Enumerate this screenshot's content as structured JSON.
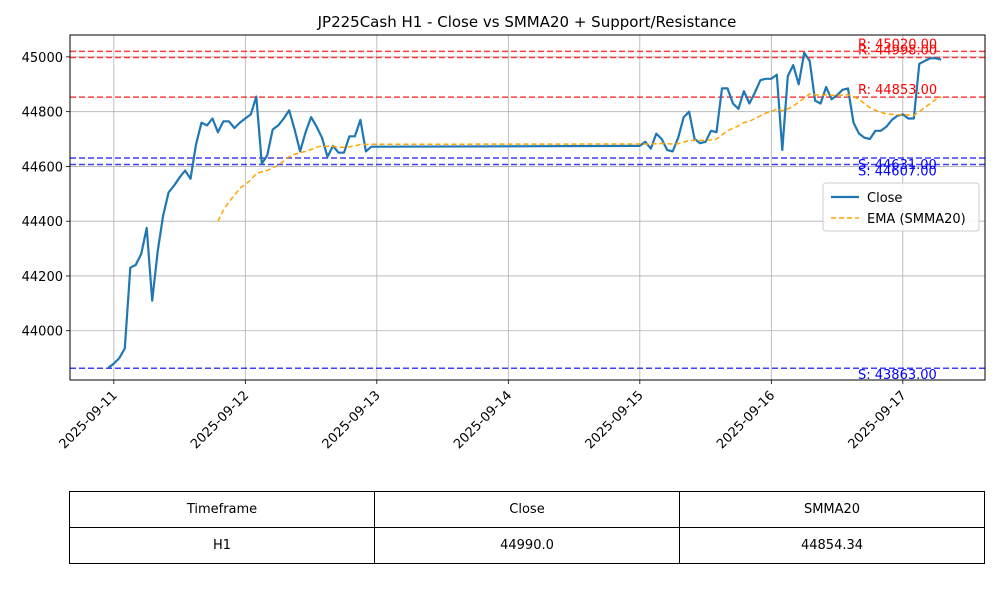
{
  "chart_data": {
    "type": "line",
    "title": "JP225Cash H1 - Close vs SMMA20 + Support/Resistance",
    "xlabel": "",
    "ylabel": "",
    "x_range": [
      "2025-09-10T16:00",
      "2025-09-17T15:00"
    ],
    "ylim": [
      43820,
      45080
    ],
    "x_ticks": [
      "2025-09-11",
      "2025-09-12",
      "2025-09-13",
      "2025-09-14",
      "2025-09-15",
      "2025-09-16",
      "2025-09-17"
    ],
    "y_ticks": [
      44000,
      44200,
      44400,
      44600,
      44800,
      45000
    ],
    "grid": true,
    "legend_position": "center-right",
    "series": [
      {
        "name": "Close",
        "color": "#1f77b4",
        "style": "solid",
        "points": [
          [
            "2025-09-10T23:00",
            43865
          ],
          [
            "2025-09-11T00:00",
            43880
          ],
          [
            "2025-09-11T01:00",
            43900
          ],
          [
            "2025-09-11T02:00",
            43935
          ],
          [
            "2025-09-11T03:00",
            44230
          ],
          [
            "2025-09-11T04:00",
            44240
          ],
          [
            "2025-09-11T05:00",
            44280
          ],
          [
            "2025-09-11T06:00",
            44375
          ],
          [
            "2025-09-11T07:00",
            44110
          ],
          [
            "2025-09-11T08:00",
            44290
          ],
          [
            "2025-09-11T09:00",
            44420
          ],
          [
            "2025-09-11T10:00",
            44505
          ],
          [
            "2025-09-11T11:00",
            44530
          ],
          [
            "2025-09-11T12:00",
            44560
          ],
          [
            "2025-09-11T13:00",
            44585
          ],
          [
            "2025-09-11T14:00",
            44555
          ],
          [
            "2025-09-11T15:00",
            44680
          ],
          [
            "2025-09-11T16:00",
            44760
          ],
          [
            "2025-09-11T17:00",
            44750
          ],
          [
            "2025-09-11T18:00",
            44775
          ],
          [
            "2025-09-11T19:00",
            44725
          ],
          [
            "2025-09-11T20:00",
            44765
          ],
          [
            "2025-09-11T21:00",
            44765
          ],
          [
            "2025-09-11T22:00",
            44740
          ],
          [
            "2025-09-11T23:00",
            44760
          ],
          [
            "2025-09-12T00:00",
            44775
          ],
          [
            "2025-09-12T01:00",
            44790
          ],
          [
            "2025-09-12T02:00",
            44855
          ],
          [
            "2025-09-12T03:00",
            44610
          ],
          [
            "2025-09-12T04:00",
            44640
          ],
          [
            "2025-09-12T05:00",
            44735
          ],
          [
            "2025-09-12T06:00",
            44750
          ],
          [
            "2025-09-12T07:00",
            44775
          ],
          [
            "2025-09-12T08:00",
            44805
          ],
          [
            "2025-09-12T09:00",
            44735
          ],
          [
            "2025-09-12T10:00",
            44655
          ],
          [
            "2025-09-12T11:00",
            44725
          ],
          [
            "2025-09-12T12:00",
            44780
          ],
          [
            "2025-09-12T13:00",
            44745
          ],
          [
            "2025-09-12T14:00",
            44705
          ],
          [
            "2025-09-12T15:00",
            44635
          ],
          [
            "2025-09-12T16:00",
            44675
          ],
          [
            "2025-09-12T17:00",
            44650
          ],
          [
            "2025-09-12T18:00",
            44650
          ],
          [
            "2025-09-12T19:00",
            44710
          ],
          [
            "2025-09-12T20:00",
            44710
          ],
          [
            "2025-09-12T21:00",
            44770
          ],
          [
            "2025-09-12T22:00",
            44655
          ],
          [
            "2025-09-12T23:00",
            44672
          ],
          [
            "2025-09-15T00:00",
            44675
          ],
          [
            "2025-09-15T01:00",
            44690
          ],
          [
            "2025-09-15T02:00",
            44665
          ],
          [
            "2025-09-15T03:00",
            44720
          ],
          [
            "2025-09-15T04:00",
            44700
          ],
          [
            "2025-09-15T05:00",
            44660
          ],
          [
            "2025-09-15T06:00",
            44655
          ],
          [
            "2025-09-15T07:00",
            44705
          ],
          [
            "2025-09-15T08:00",
            44780
          ],
          [
            "2025-09-15T09:00",
            44800
          ],
          [
            "2025-09-15T10:00",
            44700
          ],
          [
            "2025-09-15T11:00",
            44685
          ],
          [
            "2025-09-15T12:00",
            44690
          ],
          [
            "2025-09-15T13:00",
            44730
          ],
          [
            "2025-09-15T14:00",
            44725
          ],
          [
            "2025-09-15T15:00",
            44885
          ],
          [
            "2025-09-15T16:00",
            44885
          ],
          [
            "2025-09-15T17:00",
            44830
          ],
          [
            "2025-09-15T18:00",
            44810
          ],
          [
            "2025-09-15T19:00",
            44875
          ],
          [
            "2025-09-15T20:00",
            44830
          ],
          [
            "2025-09-15T21:00",
            44870
          ],
          [
            "2025-09-15T22:00",
            44915
          ],
          [
            "2025-09-15T23:00",
            44920
          ],
          [
            "2025-09-16T00:00",
            44920
          ],
          [
            "2025-09-16T01:00",
            44935
          ],
          [
            "2025-09-16T02:00",
            44660
          ],
          [
            "2025-09-16T03:00",
            44930
          ],
          [
            "2025-09-16T04:00",
            44970
          ],
          [
            "2025-09-16T05:00",
            44900
          ],
          [
            "2025-09-16T06:00",
            45015
          ],
          [
            "2025-09-16T07:00",
            44985
          ],
          [
            "2025-09-16T08:00",
            44840
          ],
          [
            "2025-09-16T09:00",
            44830
          ],
          [
            "2025-09-16T10:00",
            44890
          ],
          [
            "2025-09-16T11:00",
            44845
          ],
          [
            "2025-09-16T12:00",
            44860
          ],
          [
            "2025-09-16T13:00",
            44880
          ],
          [
            "2025-09-16T14:00",
            44885
          ],
          [
            "2025-09-16T15:00",
            44760
          ],
          [
            "2025-09-16T16:00",
            44720
          ],
          [
            "2025-09-16T17:00",
            44705
          ],
          [
            "2025-09-16T18:00",
            44700
          ],
          [
            "2025-09-16T19:00",
            44730
          ],
          [
            "2025-09-16T20:00",
            44730
          ],
          [
            "2025-09-16T21:00",
            44745
          ],
          [
            "2025-09-16T22:00",
            44770
          ],
          [
            "2025-09-16T23:00",
            44785
          ],
          [
            "2025-09-17T00:00",
            44790
          ],
          [
            "2025-09-17T01:00",
            44775
          ],
          [
            "2025-09-17T02:00",
            44775
          ],
          [
            "2025-09-17T03:00",
            44975
          ],
          [
            "2025-09-17T04:00",
            44985
          ],
          [
            "2025-09-17T05:00",
            44995
          ],
          [
            "2025-09-17T06:00",
            44995
          ],
          [
            "2025-09-17T07:00",
            44990
          ]
        ]
      },
      {
        "name": "EMA (SMMA20)",
        "color": "#ffa500",
        "style": "dashed",
        "points": [
          [
            "2025-09-11T19:00",
            44400
          ],
          [
            "2025-09-11T20:00",
            44440
          ],
          [
            "2025-09-11T21:00",
            44470
          ],
          [
            "2025-09-11T22:00",
            44495
          ],
          [
            "2025-09-11T23:00",
            44520
          ],
          [
            "2025-09-12T00:00",
            44535
          ],
          [
            "2025-09-12T01:00",
            44550
          ],
          [
            "2025-09-12T02:00",
            44575
          ],
          [
            "2025-09-12T03:00",
            44580
          ],
          [
            "2025-09-12T04:00",
            44585
          ],
          [
            "2025-09-12T05:00",
            44595
          ],
          [
            "2025-09-12T06:00",
            44605
          ],
          [
            "2025-09-12T07:00",
            44620
          ],
          [
            "2025-09-12T08:00",
            44635
          ],
          [
            "2025-09-12T09:00",
            44645
          ],
          [
            "2025-09-12T10:00",
            44650
          ],
          [
            "2025-09-12T11:00",
            44655
          ],
          [
            "2025-09-12T12:00",
            44662
          ],
          [
            "2025-09-12T13:00",
            44670
          ],
          [
            "2025-09-12T14:00",
            44675
          ],
          [
            "2025-09-12T15:00",
            44673
          ],
          [
            "2025-09-12T16:00",
            44673
          ],
          [
            "2025-09-12T17:00",
            44670
          ],
          [
            "2025-09-12T18:00",
            44670
          ],
          [
            "2025-09-12T19:00",
            44672
          ],
          [
            "2025-09-12T20:00",
            44675
          ],
          [
            "2025-09-12T21:00",
            44680
          ],
          [
            "2025-09-12T22:00",
            44680
          ],
          [
            "2025-09-12T23:00",
            44681
          ],
          [
            "2025-09-15T00:00",
            44682
          ],
          [
            "2025-09-15T01:00",
            44682
          ],
          [
            "2025-09-15T02:00",
            44682
          ],
          [
            "2025-09-15T03:00",
            44683
          ],
          [
            "2025-09-15T04:00",
            44684
          ],
          [
            "2025-09-15T05:00",
            44683
          ],
          [
            "2025-09-15T06:00",
            44682
          ],
          [
            "2025-09-15T07:00",
            44683
          ],
          [
            "2025-09-15T08:00",
            44688
          ],
          [
            "2025-09-15T09:00",
            44695
          ],
          [
            "2025-09-15T10:00",
            44695
          ],
          [
            "2025-09-15T11:00",
            44695
          ],
          [
            "2025-09-15T12:00",
            44695
          ],
          [
            "2025-09-15T13:00",
            44697
          ],
          [
            "2025-09-15T14:00",
            44700
          ],
          [
            "2025-09-15T15:00",
            44715
          ],
          [
            "2025-09-15T16:00",
            44730
          ],
          [
            "2025-09-15T17:00",
            44740
          ],
          [
            "2025-09-15T18:00",
            44748
          ],
          [
            "2025-09-15T19:00",
            44760
          ],
          [
            "2025-09-15T20:00",
            44765
          ],
          [
            "2025-09-15T21:00",
            44775
          ],
          [
            "2025-09-15T22:00",
            44785
          ],
          [
            "2025-09-15T23:00",
            44795
          ],
          [
            "2025-09-16T00:00",
            44800
          ],
          [
            "2025-09-16T01:00",
            44810
          ],
          [
            "2025-09-16T02:00",
            44803
          ],
          [
            "2025-09-16T03:00",
            44810
          ],
          [
            "2025-09-16T04:00",
            44820
          ],
          [
            "2025-09-16T05:00",
            44835
          ],
          [
            "2025-09-16T06:00",
            44850
          ],
          [
            "2025-09-16T07:00",
            44865
          ],
          [
            "2025-09-16T08:00",
            44862
          ],
          [
            "2025-09-16T09:00",
            44860
          ],
          [
            "2025-09-16T10:00",
            44862
          ],
          [
            "2025-09-16T11:00",
            44860
          ],
          [
            "2025-09-16T12:00",
            44860
          ],
          [
            "2025-09-16T13:00",
            44861
          ],
          [
            "2025-09-16T14:00",
            44862
          ],
          [
            "2025-09-16T15:00",
            44855
          ],
          [
            "2025-09-16T16:00",
            44845
          ],
          [
            "2025-09-16T17:00",
            44830
          ],
          [
            "2025-09-16T18:00",
            44815
          ],
          [
            "2025-09-16T19:00",
            44805
          ],
          [
            "2025-09-16T20:00",
            44798
          ],
          [
            "2025-09-16T21:00",
            44792
          ],
          [
            "2025-09-16T22:00",
            44790
          ],
          [
            "2025-09-16T23:00",
            44789
          ],
          [
            "2025-09-17T00:00",
            44789
          ],
          [
            "2025-09-17T01:00",
            44788
          ],
          [
            "2025-09-17T02:00",
            44787
          ],
          [
            "2025-09-17T03:00",
            44800
          ],
          [
            "2025-09-17T04:00",
            44815
          ],
          [
            "2025-09-17T05:00",
            44830
          ],
          [
            "2025-09-17T06:00",
            44845
          ],
          [
            "2025-09-17T07:00",
            44854.34
          ]
        ]
      }
    ],
    "levels": [
      {
        "kind": "resistance",
        "value": 45020.0,
        "label": "R: 45020.00",
        "color": "#ff0000"
      },
      {
        "kind": "resistance",
        "value": 44998.0,
        "label": "R: 44998.00",
        "color": "#ff0000"
      },
      {
        "kind": "resistance",
        "value": 44853.0,
        "label": "R: 44853.00",
        "color": "#ff0000"
      },
      {
        "kind": "support",
        "value": 44631.0,
        "label": "S: 44631.00",
        "color": "#0000ff"
      },
      {
        "kind": "support",
        "value": 44607.0,
        "label": "S: 44607.00",
        "color": "#0000ff"
      },
      {
        "kind": "support",
        "value": 43863.0,
        "label": "S: 43863.00",
        "color": "#0000ff"
      }
    ]
  },
  "table": {
    "headers": [
      "Timeframe",
      "Close",
      "SMMA20"
    ],
    "rows": [
      [
        "H1",
        "44990.0",
        "44854.34"
      ]
    ]
  }
}
